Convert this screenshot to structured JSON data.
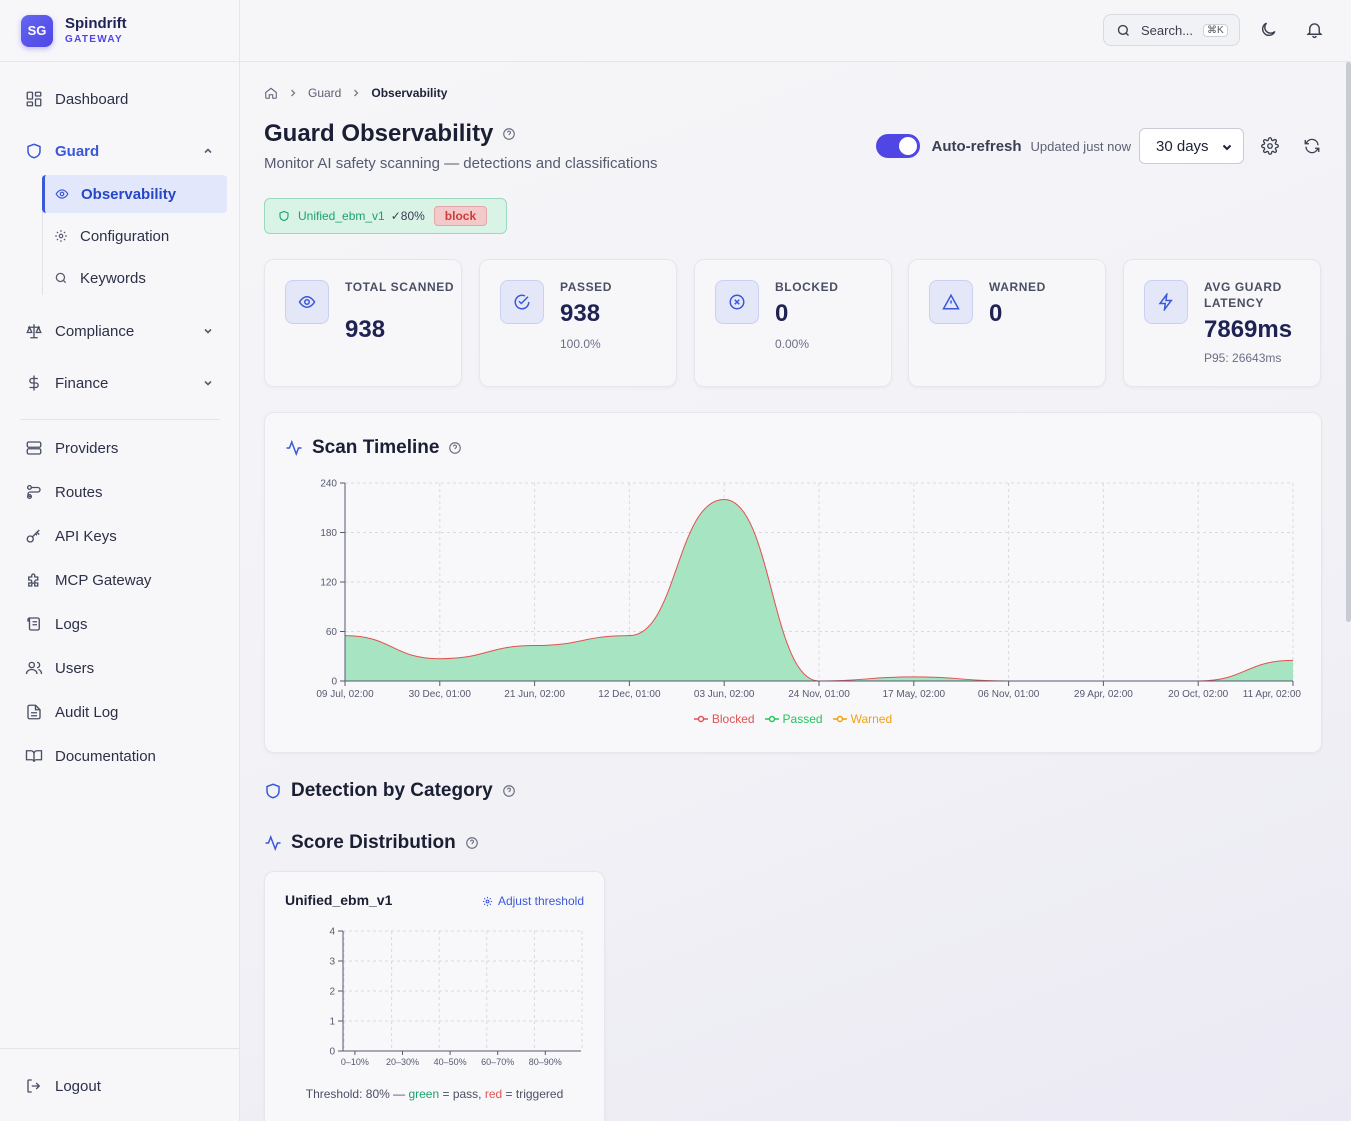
{
  "brand": {
    "logo": "SG",
    "name": "Spindrift",
    "sub": "GATEWAY"
  },
  "sidebar": {
    "dashboard": "Dashboard",
    "guard": "Guard",
    "guard_sub": [
      "Observability",
      "Configuration",
      "Keywords"
    ],
    "compliance": "Compliance",
    "finance": "Finance",
    "items": [
      "Providers",
      "Routes",
      "API Keys",
      "MCP Gateway",
      "Logs",
      "Users",
      "Audit Log",
      "Documentation"
    ],
    "logout": "Logout"
  },
  "topbar": {
    "search_placeholder": "Search...",
    "shortcut": "⌘K"
  },
  "breadcrumb": [
    "Guard",
    "Observability"
  ],
  "page": {
    "title": "Guard Observability",
    "subtitle": "Monitor AI safety scanning — detections and classifications"
  },
  "controls": {
    "auto_refresh_label": "Auto-refresh",
    "auto_refresh_on": true,
    "updated": "Updated just now",
    "range": "30 days"
  },
  "policy_badge": {
    "name": "Unified_ebm_v1",
    "threshold": "✓80%",
    "action": "block"
  },
  "stats": [
    {
      "label": "Total Scanned",
      "value": "938",
      "sub": "",
      "icon": "eye-icon"
    },
    {
      "label": "Passed",
      "value": "938",
      "sub": "100.0%",
      "icon": "check-circle-icon"
    },
    {
      "label": "Blocked",
      "value": "0",
      "sub": "0.00%",
      "icon": "x-circle-icon"
    },
    {
      "label": "Warned",
      "value": "0",
      "sub": "",
      "icon": "warning-triangle-icon"
    },
    {
      "label": "Avg Guard Latency",
      "value": "7869ms",
      "sub": "P95: 26643ms",
      "icon": "lightning-icon"
    }
  ],
  "sections": {
    "timeline": "Scan Timeline",
    "detection": "Detection by Category",
    "distribution": "Score Distribution"
  },
  "colors": {
    "accent": "#4f46e5",
    "blocked": "#e05252",
    "passed": "#22c55e",
    "warned": "#f59e0b",
    "passed_fill": "#a6e4c2"
  },
  "chart_data": [
    {
      "type": "area",
      "x": [
        "09 Jul, 02:00",
        "30 Dec, 01:00",
        "21 Jun, 02:00",
        "12 Dec, 01:00",
        "03 Jun, 02:00",
        "24 Nov, 01:00",
        "17 May, 02:00",
        "06 Nov, 01:00",
        "29 Apr, 02:00",
        "20 Oct, 02:00",
        "11 Apr, 02:00"
      ],
      "series": [
        {
          "name": "Blocked",
          "values": [
            0,
            0,
            0,
            0,
            0,
            0,
            0,
            0,
            0,
            0,
            0
          ]
        },
        {
          "name": "Passed",
          "values": [
            55,
            27,
            43,
            55,
            220,
            0,
            5,
            0,
            0,
            0,
            25
          ]
        },
        {
          "name": "Warned",
          "values": [
            0,
            0,
            0,
            0,
            0,
            0,
            0,
            0,
            0,
            0,
            0
          ]
        }
      ],
      "ylim": [
        0,
        240
      ],
      "yticks": [
        0,
        60,
        120,
        180,
        240
      ],
      "grid": true,
      "legend": "bottom"
    },
    {
      "type": "bar",
      "title": "Unified_ebm_v1",
      "categories": [
        "0–10%",
        "20–30%",
        "40–50%",
        "60–70%",
        "80–90%"
      ],
      "values": [
        0,
        0,
        0,
        0,
        0
      ],
      "ylim": [
        0,
        4
      ],
      "yticks": [
        0,
        1,
        2,
        3,
        4
      ],
      "grid": true
    }
  ],
  "score_dist": {
    "adjust_label": "Adjust threshold",
    "footer_prefix": "Threshold: 80% — ",
    "green": "green",
    "pass": " = pass, ",
    "red": "red",
    "triggered": " = triggered"
  }
}
